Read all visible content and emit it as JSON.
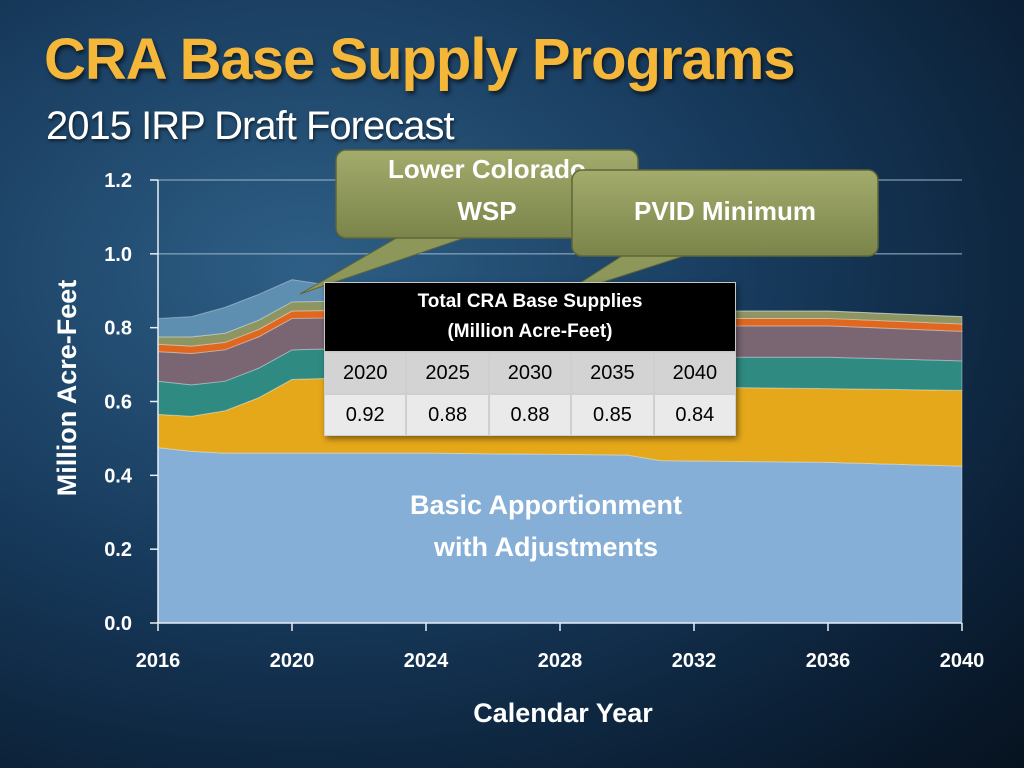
{
  "slide": {
    "title": "CRA Base Supply Programs",
    "subtitle": "2015 IRP Draft Forecast"
  },
  "colors": {
    "title": "#f4b73a",
    "basic_apportionment": "#85afd6",
    "gold_layer": "#e5a81a",
    "teal_layer": "#2f8a82",
    "mauve_layer": "#7a6673",
    "orange_layer": "#e0671f",
    "pvid_layer": "#8d9663",
    "lower_colorado_layer": "#5f8fb0",
    "callout_fill": "#8e975a"
  },
  "callouts": {
    "lower_colorado_line1": "Lower Colorado",
    "lower_colorado_line2": "WSP",
    "pvid": "PVID Minimum"
  },
  "area_label": {
    "line1": "Basic Apportionment",
    "line2": "with Adjustments"
  },
  "table": {
    "header_line1": "Total CRA Base Supplies",
    "header_line2": "(Million Acre-Feet)",
    "years": [
      "2020",
      "2025",
      "2030",
      "2035",
      "2040"
    ],
    "values": [
      "0.92",
      "0.88",
      "0.88",
      "0.85",
      "0.84"
    ]
  },
  "chart_data": {
    "type": "area",
    "stacked": true,
    "xlabel": "Calendar Year",
    "ylabel": "Million Acre-Feet",
    "xlim": [
      2016,
      2040
    ],
    "ylim": [
      0,
      1.2
    ],
    "x_ticks": [
      "2016",
      "2020",
      "2024",
      "2028",
      "2032",
      "2036",
      "2040"
    ],
    "y_ticks": [
      "0.0",
      "0.2",
      "0.4",
      "0.6",
      "0.8",
      "1.0",
      "1.2"
    ],
    "grid": "horizontal",
    "x": [
      2016,
      2017,
      2018,
      2019,
      2020,
      2024,
      2030,
      2031,
      2036,
      2040
    ],
    "series": [
      {
        "name": "Basic Apportionment with Adjustments",
        "color": "#85afd6",
        "values": [
          0.475,
          0.465,
          0.46,
          0.46,
          0.46,
          0.46,
          0.455,
          0.44,
          0.435,
          0.425
        ]
      },
      {
        "color": "#e5a81a",
        "values": [
          0.09,
          0.095,
          0.115,
          0.15,
          0.2,
          0.21,
          0.21,
          0.2,
          0.2,
          0.205
        ]
      },
      {
        "color": "#2f8a82",
        "values": [
          0.09,
          0.085,
          0.08,
          0.08,
          0.08,
          0.08,
          0.08,
          0.08,
          0.085,
          0.08
        ]
      },
      {
        "color": "#7a6673",
        "values": [
          0.08,
          0.085,
          0.085,
          0.085,
          0.085,
          0.08,
          0.08,
          0.085,
          0.085,
          0.08
        ]
      },
      {
        "color": "#e0671f",
        "values": [
          0.02,
          0.02,
          0.02,
          0.02,
          0.02,
          0.02,
          0.02,
          0.02,
          0.02,
          0.02
        ]
      },
      {
        "name": "PVID Minimum",
        "color": "#8d9663",
        "values": [
          0.02,
          0.025,
          0.025,
          0.025,
          0.025,
          0.025,
          0.02,
          0.02,
          0.02,
          0.02
        ]
      },
      {
        "name": "Lower Colorado WSP",
        "color": "#5f8fb0",
        "values": [
          0.05,
          0.055,
          0.07,
          0.07,
          0.06,
          0.0,
          0.0,
          0.0,
          0.0,
          0.0
        ]
      }
    ]
  }
}
